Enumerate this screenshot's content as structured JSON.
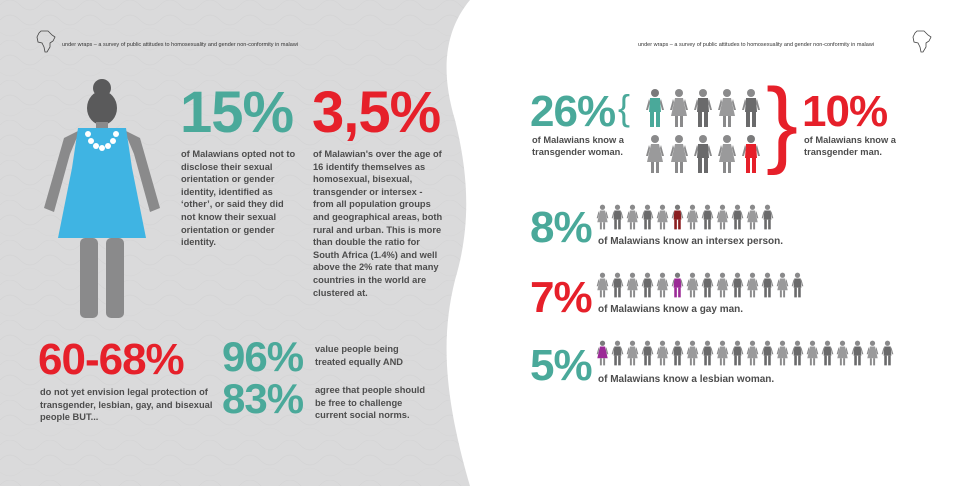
{
  "header": {
    "left_running_head": "under wraps – a survey of public attitudes to homosexuality and gender non-conformity in malawi",
    "right_running_head": "under wraps – a survey of public attitudes to homosexuality and gender non-conformity in malawi"
  },
  "left_page": {
    "stat_15": {
      "value": "15%",
      "text": "of Malawians opted not to disclose their sexual orientation or gender identity, identified as ‘other’, or said they did not know their sexual orientation or gender identity."
    },
    "stat_3_5": {
      "value": "3,5%",
      "text": "of Malawian's over the age of 16 identify themselves as homosexual, bisexual, transgender or intersex - from all population groups and geographical areas, both rural and urban. This is more than double the ratio for South Africa (1.4%) and well above the 2% rate that many countries in the world are clustered at."
    },
    "stat_60_68": {
      "value": "60-68%",
      "text": "do not yet envision legal protection of transgender, lesbian, gay, and bisexual people BUT..."
    },
    "stat_96": {
      "value": "96%",
      "text": "value people being treated equally AND"
    },
    "stat_83": {
      "value": "83%",
      "text": "agree that people should be free to challenge current social norms."
    }
  },
  "right_page": {
    "stat_26": {
      "value": "26%",
      "text": "of Malawians know a transgender woman."
    },
    "bracket_left": "{",
    "bracket_right": "}",
    "stat_10": {
      "value": "10%",
      "text": "of Malawians know a transgender man."
    },
    "stat_8": {
      "value": "8%",
      "text": "of Malawians know an intersex person."
    },
    "stat_7": {
      "value": "7%",
      "text": "of Malawians know a gay man."
    },
    "stat_5": {
      "value": "5%",
      "text": "of Malawians know a lesbian woman."
    }
  },
  "colors": {
    "teal": "#4aa99a",
    "red": "#e6202a",
    "grey_text": "#4d4d4d",
    "page_grey": "#d9d9da",
    "dress_blue": "#3fb4e3",
    "highlight_purple": "#9b2a96",
    "highlight_darkred": "#8b1e20"
  },
  "icons": [
    "africa-map-icon",
    "woman-figure-icon",
    "person-icon"
  ]
}
